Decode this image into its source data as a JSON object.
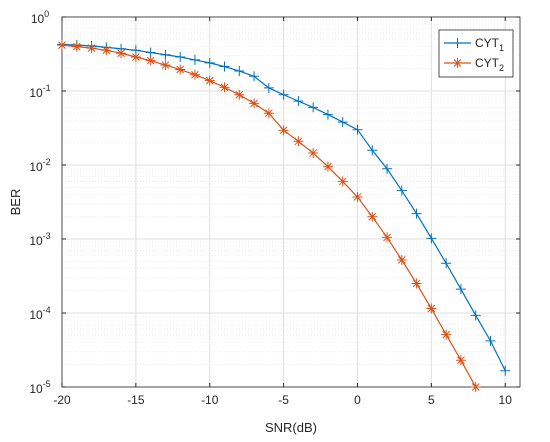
{
  "chart_data": {
    "type": "line",
    "log_y": true,
    "grid": true,
    "legend": "top-right",
    "xlabel": "SNR(dB)",
    "ylabel": "BER",
    "xlim": [
      -20,
      11
    ],
    "xticks": [
      -20,
      -15,
      -10,
      -5,
      0,
      5,
      10
    ],
    "ylim": [
      1e-05,
      1
    ],
    "yticks": [
      {
        "value": 1e-05,
        "label": "10^-5"
      },
      {
        "value": 0.0001,
        "label": "10^-4"
      },
      {
        "value": 0.001,
        "label": "10^-3"
      },
      {
        "value": 0.01,
        "label": "10^-2"
      },
      {
        "value": 0.1,
        "label": "10^-1"
      },
      {
        "value": 1,
        "label": "10^0"
      }
    ],
    "series": [
      {
        "name": "CYT_1",
        "color": "#0072BD",
        "marker": "plus",
        "x": [
          -20,
          -19,
          -18,
          -17,
          -16,
          -15,
          -14,
          -13,
          -12,
          -11,
          -10,
          -9,
          -8,
          -7,
          -6,
          -5,
          -4,
          -3,
          -2,
          -1,
          0,
          1,
          2,
          3,
          4,
          5,
          6,
          7,
          8,
          9,
          10
        ],
        "values": [
          0.427,
          0.417,
          0.407,
          0.389,
          0.372,
          0.355,
          0.331,
          0.309,
          0.288,
          0.263,
          0.24,
          0.214,
          0.186,
          0.158,
          0.11,
          0.089,
          0.073,
          0.06,
          0.048,
          0.038,
          0.03,
          0.0158,
          0.0089,
          0.0045,
          0.0022,
          0.00102,
          0.00047,
          0.00021,
          9.3e-05,
          4.2e-05,
          1.66e-05
        ]
      },
      {
        "name": "CYT_2",
        "color": "#D95319",
        "marker": "asterisk",
        "x": [
          -20,
          -19,
          -18,
          -17,
          -16,
          -15,
          -14,
          -13,
          -12,
          -11,
          -10,
          -9,
          -8,
          -7,
          -6,
          -5,
          -4,
          -3,
          -2,
          -1,
          0,
          1,
          2,
          3,
          4,
          5,
          6,
          7,
          8
        ],
        "values": [
          0.417,
          0.398,
          0.38,
          0.355,
          0.324,
          0.288,
          0.257,
          0.224,
          0.195,
          0.166,
          0.138,
          0.112,
          0.089,
          0.068,
          0.05,
          0.0295,
          0.0209,
          0.0145,
          0.0095,
          0.006,
          0.0037,
          0.002,
          0.00105,
          0.00052,
          0.00025,
          0.000115,
          5.1e-05,
          2.3e-05,
          1e-05
        ]
      }
    ]
  }
}
